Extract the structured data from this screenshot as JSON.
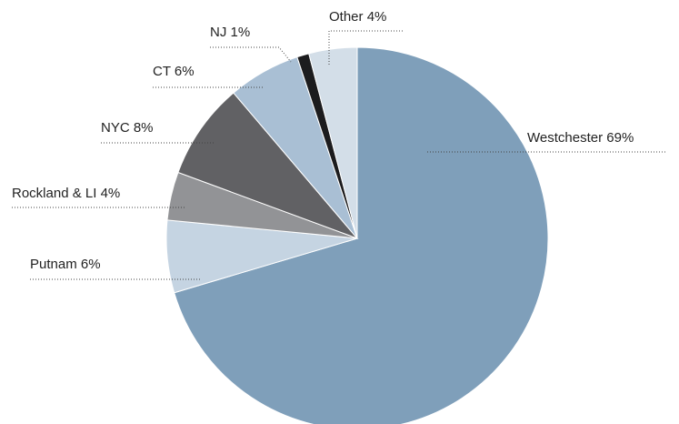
{
  "chart_data": {
    "type": "pie",
    "categories": [
      "Westchester",
      "Putnam",
      "Rockland & LI",
      "NYC",
      "CT",
      "NJ",
      "Other"
    ],
    "values": [
      69,
      6,
      4,
      8,
      6,
      1,
      4
    ],
    "value_labels": [
      "69%",
      "6%",
      "4%",
      "8%",
      "6%",
      "1%",
      "4%"
    ],
    "colors": [
      "#7f9fba",
      "#c5d4e2",
      "#929396",
      "#616164",
      "#a9bfd4",
      "#1c1c1e",
      "#d3dee8"
    ]
  }
}
